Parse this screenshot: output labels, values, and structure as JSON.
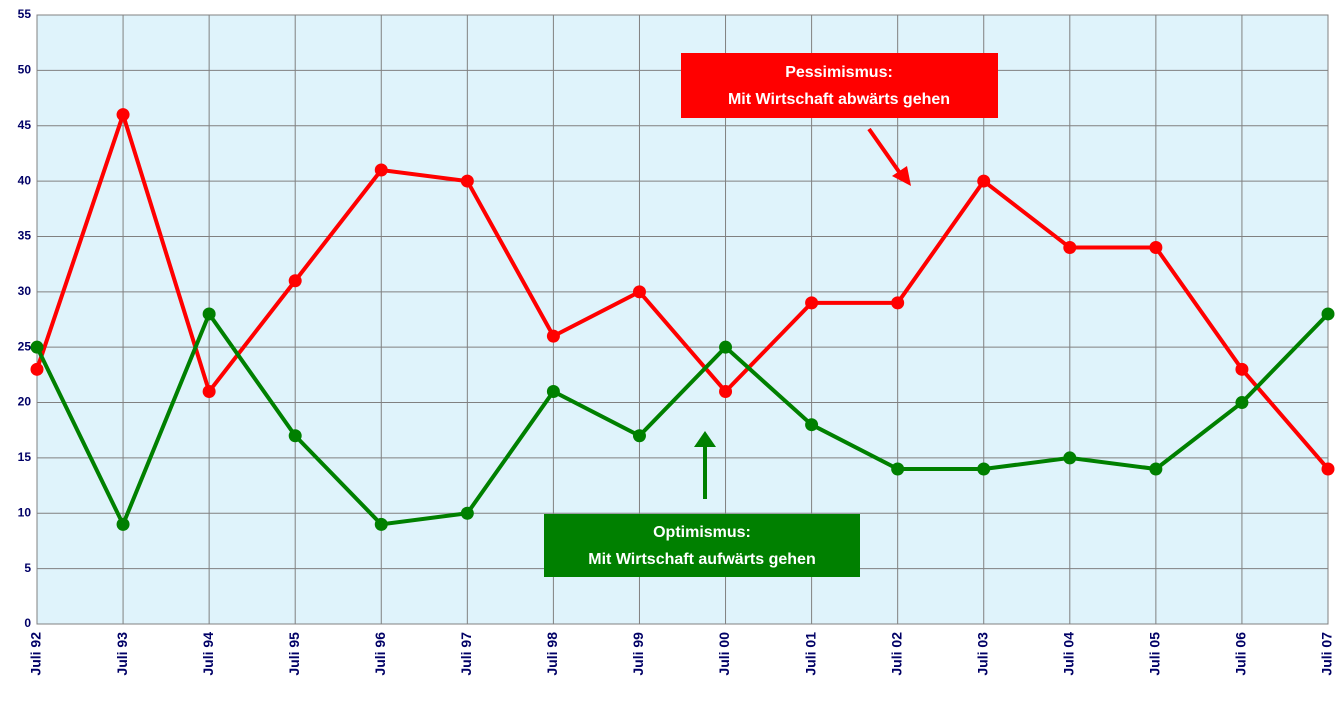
{
  "chart_data": {
    "type": "line",
    "categories": [
      "Juli 92",
      "Juli 93",
      "Juli 94",
      "Juli 95",
      "Juli 96",
      "Juli 97",
      "Juli 98",
      "Juli 99",
      "Juli 00",
      "Juli 01",
      "Juli 02",
      "Juli 03",
      "Juli 04",
      "Juli 05",
      "Juli 06",
      "Juli 07"
    ],
    "series": [
      {
        "name": "Pessimismus",
        "color": "#ff0000",
        "values": [
          23,
          46,
          21,
          31,
          41,
          40,
          26,
          30,
          21,
          29,
          29,
          40,
          34,
          34,
          23,
          14
        ]
      },
      {
        "name": "Optimismus",
        "color": "#008000",
        "values": [
          25,
          9,
          28,
          17,
          9,
          10,
          21,
          17,
          25,
          18,
          14,
          14,
          15,
          14,
          20,
          28
        ]
      }
    ],
    "ylim": [
      0,
      55
    ],
    "yticks": [
      0,
      5,
      10,
      15,
      20,
      25,
      30,
      35,
      40,
      45,
      50,
      55
    ],
    "grid": true,
    "annotations": [
      {
        "lines": [
          "Pessimismus:",
          "Mit Wirtschaft abwärts gehen"
        ]
      },
      {
        "lines": [
          "Optimismus:",
          "Mit Wirtschaft aufwärts gehen"
        ]
      }
    ]
  }
}
